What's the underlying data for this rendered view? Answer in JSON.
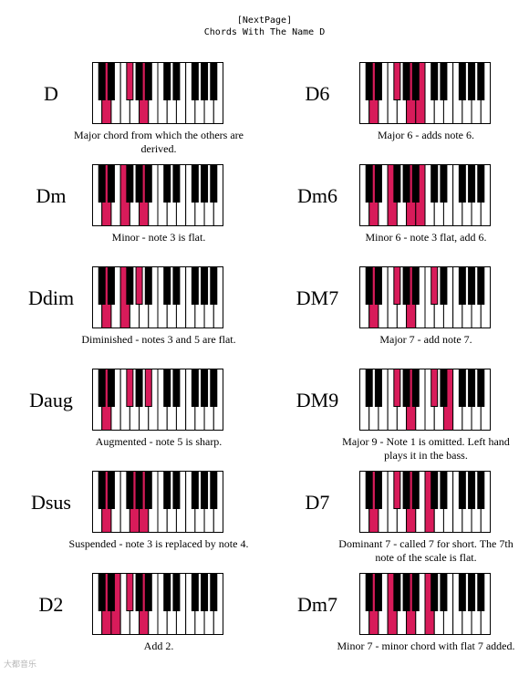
{
  "header": {
    "next_page": "[NextPage]",
    "title": "Chords With The Name D"
  },
  "watermark": "大都音乐",
  "colors": {
    "highlight": "#d81b5a",
    "black_key": "#000000",
    "white_key": "#ffffff"
  },
  "chords": [
    {
      "name": "D",
      "caption": "Major chord from which the others are derived.",
      "notes": [
        2,
        6,
        9
      ]
    },
    {
      "name": "D6",
      "caption": "Major 6 - adds note 6.",
      "notes": [
        2,
        6,
        9,
        11
      ]
    },
    {
      "name": "Dm",
      "caption": "Minor - note 3 is flat.",
      "notes": [
        2,
        5,
        9
      ]
    },
    {
      "name": "Dm6",
      "caption": "Minor 6 - note 3 flat, add 6.",
      "notes": [
        2,
        5,
        9,
        11
      ]
    },
    {
      "name": "Ddim",
      "caption": "Diminished - notes 3 and 5 are flat.",
      "notes": [
        2,
        5,
        8
      ]
    },
    {
      "name": "DM7",
      "caption": "Major 7 - add note 7.",
      "notes": [
        2,
        6,
        9,
        13
      ]
    },
    {
      "name": "Daug",
      "caption": "Augmented - note 5 is sharp.",
      "notes": [
        2,
        6,
        10
      ]
    },
    {
      "name": "DM9",
      "caption": "Major 9 - Note 1 is omitted. Left hand plays it in the bass.",
      "notes": [
        6,
        9,
        13,
        16
      ]
    },
    {
      "name": "Dsus",
      "caption": "Suspended - note 3 is replaced by note 4.",
      "notes": [
        2,
        7,
        9
      ]
    },
    {
      "name": "D7",
      "caption": "Dominant 7 - called 7 for short. The 7th note of the scale is flat.",
      "notes": [
        2,
        6,
        9,
        12
      ]
    },
    {
      "name": "D2",
      "caption": "Add 2.",
      "notes": [
        2,
        4,
        6,
        9
      ]
    },
    {
      "name": "Dm7",
      "caption": "Minor 7 - minor chord with flat 7 added.",
      "notes": [
        2,
        5,
        9,
        12
      ]
    }
  ]
}
